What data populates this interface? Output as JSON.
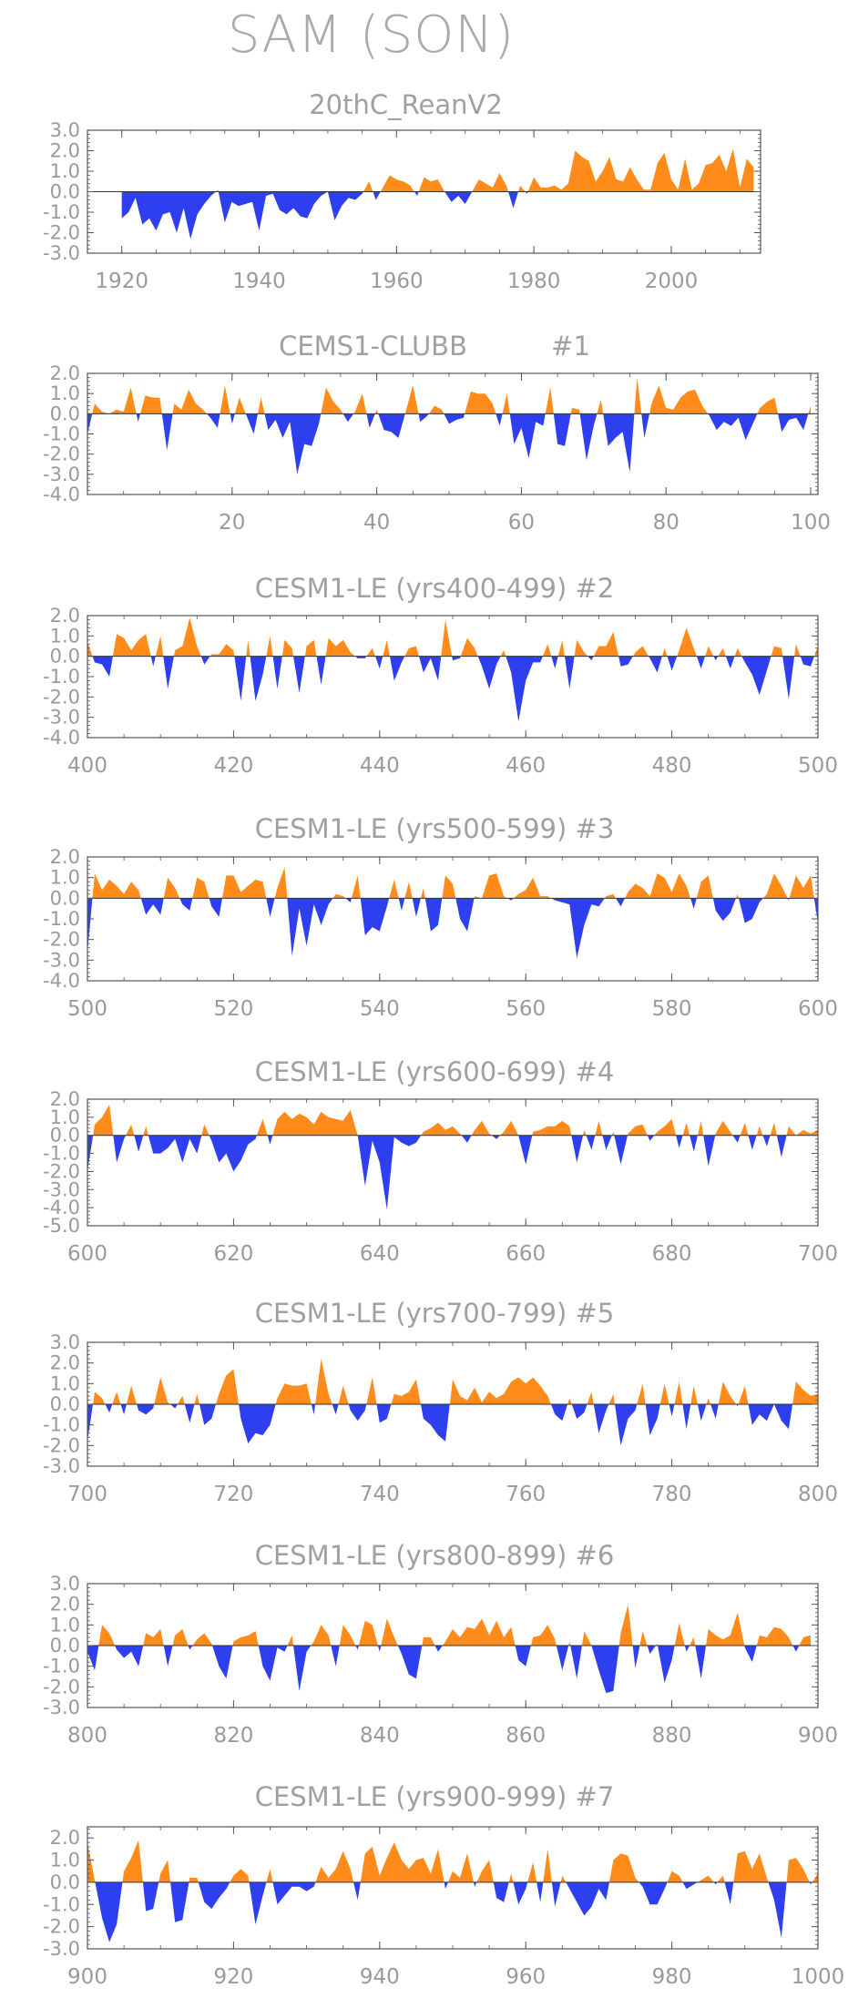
{
  "title": "SAM (SON)",
  "colors": {
    "positive": "#ff8c1a",
    "negative": "#2e3ff0",
    "axis": "#555555",
    "text": "#9a9a9a"
  },
  "chart_data": [
    {
      "type": "area",
      "title": "20thC_ReanV2",
      "xlim": [
        1915,
        2013
      ],
      "ylim": [
        -3.0,
        3.0
      ],
      "yticks": [
        "3.0",
        "2.0",
        "1.0",
        "0.0",
        "-1.0",
        "-2.0",
        "-3.0"
      ],
      "xticks": [
        "1920",
        "1940",
        "1960",
        "1980",
        "2000"
      ],
      "x_start": 1920,
      "values": [
        -1.3,
        -1.0,
        -0.3,
        -1.6,
        -1.3,
        -1.9,
        -1.1,
        -1.0,
        -2.0,
        -0.8,
        -2.3,
        -1.1,
        -0.6,
        -0.2,
        0.1,
        -1.5,
        -0.5,
        -0.7,
        -0.6,
        -0.5,
        -1.9,
        -0.2,
        -0.1,
        -0.9,
        -1.1,
        -0.8,
        -1.2,
        -1.3,
        -0.6,
        -0.2,
        0.0,
        -1.4,
        -0.7,
        -0.3,
        -0.4,
        -0.1,
        0.5,
        -0.4,
        0.2,
        0.8,
        0.6,
        0.5,
        0.3,
        -0.2,
        0.7,
        0.5,
        0.6,
        0.0,
        -0.5,
        -0.2,
        -0.6,
        0.0,
        0.6,
        0.4,
        0.2,
        0.9,
        0.3,
        -0.8,
        0.3,
        -0.1,
        0.7,
        0.2,
        0.2,
        0.3,
        0.1,
        0.4,
        2.0,
        1.7,
        1.5,
        0.5,
        1.0,
        1.7,
        0.6,
        0.5,
        1.2,
        0.6,
        0.1,
        0.1,
        1.4,
        1.9,
        0.6,
        0.1,
        1.6,
        0.1,
        0.4,
        1.3,
        1.4,
        1.8,
        1.0,
        2.1,
        0.2,
        1.6,
        1.2
      ]
    },
    {
      "type": "area",
      "title": "CEMS1-CLUBB          #1",
      "xlim": [
        0,
        101
      ],
      "ylim": [
        -4.0,
        2.0
      ],
      "yticks": [
        "2.0",
        "1.0",
        "0.0",
        "-1.0",
        "-2.0",
        "-3.0",
        "-4.0"
      ],
      "xticks": [
        "20",
        "40",
        "60",
        "80",
        "100"
      ],
      "x_start": 0,
      "values": [
        -1.0,
        0.5,
        0.1,
        0.0,
        0.2,
        0.1,
        1.3,
        -0.4,
        0.9,
        0.8,
        0.8,
        -1.8,
        0.5,
        0.2,
        1.2,
        0.5,
        0.2,
        -0.2,
        -0.7,
        1.4,
        -0.5,
        0.8,
        -0.1,
        -1.0,
        0.8,
        -0.8,
        -0.3,
        -1.2,
        -0.4,
        -3.0,
        -1.5,
        -1.6,
        -0.5,
        1.3,
        0.6,
        0.2,
        -0.4,
        0.1,
        1.0,
        -0.7,
        0.2,
        -0.8,
        -0.9,
        -1.2,
        0.1,
        1.4,
        -0.4,
        -0.1,
        0.4,
        0.2,
        -0.5,
        -0.3,
        -0.2,
        1.1,
        1.0,
        1.0,
        0.5,
        -0.6,
        1.0,
        -1.5,
        -0.7,
        -2.2,
        -0.4,
        -0.6,
        1.3,
        -1.5,
        -1.6,
        0.3,
        0.2,
        -2.3,
        -0.6,
        0.7,
        -1.6,
        -1.2,
        -0.9,
        -2.9,
        1.8,
        -1.2,
        0.5,
        1.4,
        0.3,
        0.2,
        0.8,
        1.1,
        1.2,
        0.4,
        -0.1,
        -0.8,
        -0.4,
        -0.6,
        -0.2,
        -1.3,
        -0.5,
        0.3,
        0.6,
        0.8,
        -0.9,
        -0.3,
        -0.2,
        -0.8,
        0.4
      ]
    },
    {
      "type": "area",
      "title": "CESM1-LE (yrs400-499) #2",
      "xlim": [
        400,
        500
      ],
      "ylim": [
        -4.0,
        2.0
      ],
      "yticks": [
        "2.0",
        "1.0",
        "0.0",
        "-1.0",
        "-2.0",
        "-3.0",
        "-4.0"
      ],
      "xticks": [
        "400",
        "420",
        "440",
        "460",
        "480",
        "500"
      ],
      "x_start": 400,
      "values": [
        0.7,
        -0.3,
        -0.4,
        -1.0,
        1.1,
        0.9,
        0.3,
        0.8,
        1.1,
        -0.5,
        1.0,
        -1.6,
        0.3,
        0.5,
        1.9,
        0.5,
        -0.4,
        0.1,
        0.1,
        0.6,
        0.3,
        -2.2,
        0.8,
        -2.2,
        -0.9,
        1.0,
        -1.6,
        0.8,
        0.4,
        -1.8,
        0.5,
        0.8,
        -1.4,
        0.9,
        0.5,
        0.8,
        0.2,
        -0.1,
        -0.1,
        0.4,
        -0.6,
        0.8,
        -1.2,
        -0.3,
        0.4,
        0.5,
        -0.8,
        -0.1,
        -1.2,
        1.8,
        -0.2,
        -0.1,
        0.9,
        0.4,
        -0.5,
        -1.6,
        -0.4,
        0.3,
        -0.8,
        -3.2,
        -1.2,
        -0.3,
        -0.3,
        0.6,
        -0.6,
        0.8,
        -1.6,
        0.8,
        0.2,
        -0.2,
        0.5,
        0.5,
        1.2,
        -0.5,
        -0.4,
        0.2,
        0.5,
        -0.1,
        -0.8,
        0.4,
        -0.7,
        0.3,
        1.4,
        0.4,
        -0.6,
        0.5,
        -0.2,
        0.4,
        -0.6,
        0.4,
        -0.3,
        -0.9,
        -1.9,
        -0.7,
        0.5,
        0.4,
        -2.1,
        0.6,
        -0.4,
        -0.5,
        0.5
      ]
    },
    {
      "type": "area",
      "title": "CESM1-LE (yrs500-599) #3",
      "xlim": [
        500,
        600
      ],
      "ylim": [
        -4.0,
        2.0
      ],
      "yticks": [
        "2.0",
        "1.0",
        "0.0",
        "-1.0",
        "-2.0",
        "-3.0",
        "-4.0"
      ],
      "xticks": [
        "500",
        "520",
        "540",
        "560",
        "580",
        "600"
      ],
      "x_start": 500,
      "values": [
        -2.6,
        1.2,
        0.4,
        0.9,
        0.6,
        0.2,
        0.8,
        0.4,
        -0.8,
        -0.3,
        -0.8,
        1.0,
        0.5,
        -0.3,
        -0.6,
        1.0,
        0.8,
        -0.4,
        -0.9,
        1.1,
        1.1,
        0.3,
        0.6,
        0.9,
        0.8,
        -0.9,
        0.5,
        1.5,
        -2.8,
        -0.5,
        -2.3,
        -0.3,
        -1.3,
        -0.3,
        0.2,
        0.1,
        -0.2,
        1.1,
        -1.8,
        -1.4,
        -1.6,
        -0.4,
        0.9,
        -0.6,
        0.8,
        -0.9,
        0.5,
        -1.6,
        -1.3,
        1.1,
        0.7,
        -1.0,
        -1.6,
        0.1,
        0.0,
        1.1,
        1.2,
        0.1,
        -0.1,
        0.2,
        0.4,
        1.0,
        0.1,
        0.1,
        -0.1,
        -0.2,
        -0.3,
        -2.9,
        -1.3,
        -0.3,
        -0.4,
        0.1,
        0.2,
        -0.4,
        0.3,
        0.7,
        0.5,
        0.1,
        1.2,
        1.0,
        0.3,
        1.2,
        0.6,
        -0.5,
        0.8,
        1.1,
        -0.6,
        -1.1,
        -0.7,
        0.2,
        -1.2,
        -1.0,
        -0.2,
        0.2,
        1.2,
        0.6,
        -0.1,
        1.1,
        0.5,
        1.1,
        -1.2
      ]
    },
    {
      "type": "area",
      "title": "CESM1-LE (yrs600-699) #4",
      "xlim": [
        600,
        700
      ],
      "ylim": [
        -5.0,
        2.0
      ],
      "yticks": [
        "2.0",
        "1.0",
        "0.0",
        "-1.0",
        "-2.0",
        "-3.0",
        "-4.0",
        "-5.0"
      ],
      "xticks": [
        "600",
        "620",
        "640",
        "660",
        "680",
        "700"
      ],
      "x_start": 600,
      "values": [
        -2.0,
        0.6,
        1.0,
        1.7,
        -1.5,
        -0.2,
        0.6,
        -0.9,
        0.5,
        -1.0,
        -1.0,
        -0.7,
        -0.2,
        -1.5,
        -0.2,
        -1.0,
        0.6,
        -0.3,
        -1.5,
        -1.0,
        -2.0,
        -1.4,
        -0.5,
        -0.2,
        0.9,
        -0.5,
        0.9,
        1.3,
        0.9,
        1.2,
        1.0,
        0.6,
        1.3,
        1.0,
        0.9,
        0.8,
        1.4,
        0.0,
        -2.8,
        -0.3,
        -1.5,
        -4.1,
        -0.1,
        -0.4,
        -0.6,
        -0.4,
        0.2,
        0.4,
        0.7,
        0.3,
        0.5,
        0.1,
        -0.4,
        0.3,
        0.8,
        0.1,
        -0.2,
        0.2,
        0.8,
        0.0,
        -1.6,
        0.2,
        0.3,
        0.5,
        0.5,
        0.8,
        0.5,
        -1.5,
        0.3,
        -0.8,
        0.8,
        -0.8,
        0.2,
        -1.6,
        0.1,
        0.5,
        0.6,
        -0.3,
        0.2,
        0.5,
        0.9,
        -0.7,
        0.7,
        -0.9,
        0.8,
        -1.7,
        0.1,
        0.8,
        0.2,
        -0.4,
        0.7,
        -0.8,
        0.5,
        -0.6,
        0.7,
        -1.2,
        0.5,
        0.0,
        0.3,
        0.1,
        0.3
      ]
    },
    {
      "type": "area",
      "title": "CESM1-LE (yrs700-799) #5",
      "xlim": [
        700,
        800
      ],
      "ylim": [
        -3.0,
        3.0
      ],
      "yticks": [
        "3.0",
        "2.0",
        "1.0",
        "0.0",
        "-1.0",
        "-2.0",
        "-3.0"
      ],
      "xticks": [
        "700",
        "720",
        "740",
        "760",
        "780",
        "800"
      ],
      "x_start": 700,
      "values": [
        -1.8,
        0.6,
        0.3,
        -0.4,
        0.6,
        -0.5,
        0.9,
        -0.3,
        -0.5,
        -0.2,
        1.3,
        0.1,
        -0.2,
        0.4,
        -0.9,
        0.5,
        -1.0,
        -0.7,
        0.5,
        1.4,
        1.7,
        -0.7,
        -1.9,
        -1.4,
        -1.5,
        -1.0,
        0.3,
        1.0,
        0.9,
        0.9,
        1.0,
        -0.5,
        2.2,
        0.5,
        -0.5,
        0.9,
        -0.3,
        -0.8,
        -0.3,
        1.3,
        -0.9,
        -0.7,
        0.5,
        0.4,
        0.6,
        1.2,
        -0.7,
        -1.0,
        -1.5,
        -1.8,
        1.2,
        0.4,
        0.2,
        0.8,
        0.1,
        0.6,
        0.3,
        0.5,
        1.1,
        1.3,
        1.0,
        1.3,
        0.9,
        0.4,
        -0.5,
        -0.8,
        0.3,
        -0.7,
        -0.4,
        0.6,
        -1.4,
        -0.3,
        0.5,
        -2.0,
        -0.7,
        -0.3,
        1.0,
        -1.5,
        -0.7,
        1.0,
        -0.6,
        1.1,
        -1.2,
        0.9,
        -0.8,
        0.3,
        -0.7,
        1.1,
        0.4,
        -0.1,
        0.9,
        -1.0,
        -0.5,
        -0.8,
        0.0,
        -0.8,
        -1.2,
        1.1,
        0.7,
        0.4,
        0.5
      ]
    },
    {
      "type": "area",
      "title": "CESM1-LE (yrs800-899) #6",
      "xlim": [
        800,
        900
      ],
      "ylim": [
        -3.0,
        3.0
      ],
      "yticks": [
        "3.0",
        "2.0",
        "1.0",
        "0.0",
        "-1.0",
        "-2.0",
        "-3.0"
      ],
      "xticks": [
        "800",
        "820",
        "840",
        "860",
        "880",
        "900"
      ],
      "x_start": 800,
      "values": [
        -0.3,
        -1.2,
        1.0,
        0.6,
        -0.2,
        -0.6,
        -0.3,
        -1.0,
        0.6,
        0.4,
        0.8,
        -1.0,
        0.5,
        0.8,
        -0.2,
        0.3,
        0.6,
        0.1,
        -1.0,
        -1.6,
        0.2,
        0.4,
        0.5,
        0.7,
        -1.0,
        -1.7,
        -0.1,
        -0.3,
        0.5,
        -2.2,
        -0.3,
        0.2,
        1.0,
        0.5,
        -1.0,
        1.0,
        0.5,
        -0.2,
        1.2,
        1.0,
        -0.3,
        1.3,
        0.4,
        -0.4,
        -1.4,
        -1.6,
        0.4,
        0.4,
        -0.3,
        0.2,
        0.8,
        0.4,
        0.9,
        0.8,
        1.3,
        0.5,
        1.2,
        0.4,
        0.9,
        -0.7,
        -1.0,
        0.4,
        0.5,
        1.0,
        0.3,
        -1.2,
        0.2,
        -1.6,
        0.7,
        0.0,
        -1.2,
        -2.3,
        -2.2,
        0.6,
        2.0,
        -1.1,
        0.7,
        -0.4,
        0.1,
        -1.8,
        -0.7,
        1.1,
        -0.3,
        0.4,
        -1.6,
        0.8,
        0.5,
        0.3,
        0.5,
        1.6,
        -0.1,
        -0.8,
        0.5,
        0.4,
        0.9,
        0.8,
        0.4,
        -0.3,
        0.4,
        0.5
      ]
    },
    {
      "type": "area",
      "title": "CESM1-LE (yrs900-999) #7",
      "xlim": [
        900,
        1000
      ],
      "ylim": [
        -3.0,
        2.5
      ],
      "yticks": [
        "2.0",
        "1.0",
        "0.0",
        "-1.0",
        "-2.0",
        "-3.0"
      ],
      "xticks": [
        "900",
        "920",
        "940",
        "960",
        "980",
        "1000"
      ],
      "x_start": 900,
      "values": [
        1.8,
        0.1,
        -1.6,
        -2.7,
        -1.9,
        0.5,
        1.1,
        1.9,
        -1.3,
        -1.2,
        0.4,
        1.0,
        -1.8,
        -1.7,
        0.2,
        0.2,
        -0.9,
        -1.2,
        -0.7,
        -0.3,
        0.3,
        0.6,
        0.3,
        -1.9,
        -0.6,
        0.6,
        -1.0,
        -0.6,
        -0.2,
        -0.2,
        -0.4,
        -0.2,
        0.7,
        0.2,
        0.6,
        1.4,
        0.6,
        -0.8,
        1.3,
        1.6,
        0.3,
        1.1,
        1.8,
        1.0,
        0.6,
        1.0,
        1.1,
        0.4,
        1.5,
        -0.3,
        0.5,
        0.2,
        1.3,
        -0.2,
        0.5,
        1.0,
        -0.7,
        -0.9,
        0.4,
        -1.0,
        -0.3,
        0.9,
        -0.9,
        1.5,
        -1.1,
        0.3,
        -0.3,
        -0.9,
        -1.5,
        -1.1,
        -0.3,
        -0.8,
        1.0,
        1.3,
        1.2,
        0.2,
        -0.2,
        -1.0,
        -1.0,
        -0.3,
        0.5,
        0.3,
        -0.3,
        -0.1,
        0.1,
        0.3,
        -0.1,
        0.3,
        -1.0,
        1.3,
        1.4,
        0.6,
        1.3,
        0.2,
        -0.8,
        -2.5,
        1.0,
        1.1,
        0.6,
        -0.1,
        0.4
      ]
    }
  ]
}
